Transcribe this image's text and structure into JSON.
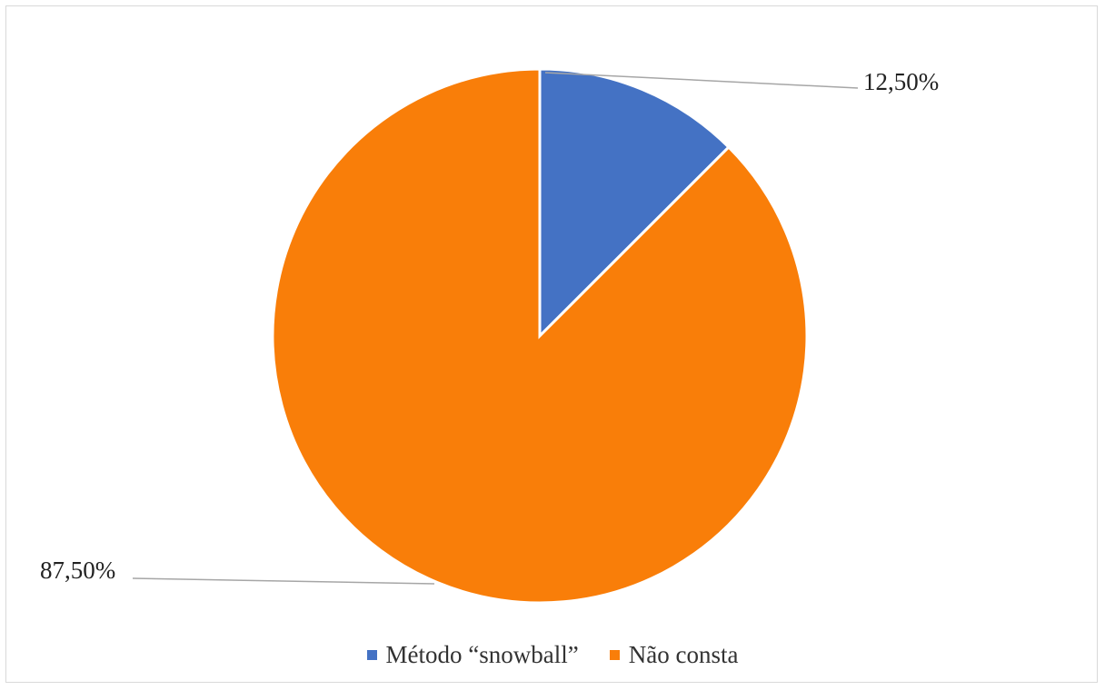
{
  "chart_data": {
    "type": "pie",
    "slices": [
      {
        "label": "Método “snowball”",
        "value": 12.5,
        "display": "12,50%",
        "color": "#4472C4"
      },
      {
        "label": "Não consta",
        "value": 87.5,
        "display": "87,50%",
        "color": "#F97E09"
      }
    ],
    "legend": {
      "position": "bottom"
    },
    "start_angle_deg": 0,
    "direction": "clockwise"
  }
}
